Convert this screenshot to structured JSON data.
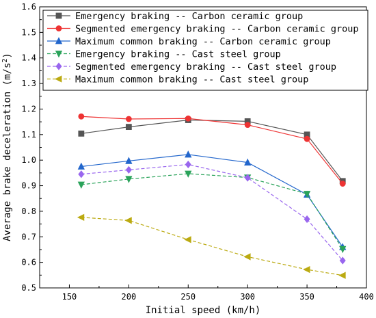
{
  "chart_data": {
    "type": "line",
    "xlabel": "Initial speed (km/h)",
    "ylabel_main": "Average brake deceleration (m/s",
    "ylabel_sup": "2",
    "ylabel_tail": ")",
    "xlim": [
      125,
      400
    ],
    "ylim": [
      0.5,
      1.6
    ],
    "x_ticks": [
      150,
      200,
      250,
      300,
      350,
      400
    ],
    "y_ticks": [
      0.5,
      0.6,
      0.7,
      0.8,
      0.9,
      1.0,
      1.1,
      1.2,
      1.3,
      1.4,
      1.5,
      1.6
    ],
    "x_tick_labels": [
      "150",
      "200",
      "250",
      "300",
      "350",
      "400"
    ],
    "y_tick_labels": [
      "0.5",
      "0.6",
      "0.7",
      "0.8",
      "0.9",
      "1.0",
      "1.1",
      "1.2",
      "1.3",
      "1.4",
      "1.5",
      "1.6"
    ],
    "grid": false,
    "legend_position": "top-left",
    "x": [
      160,
      200,
      250,
      300,
      350,
      380
    ],
    "series": [
      {
        "name": "Emergency braking -- Carbon ceramic group",
        "values": [
          1.104,
          1.13,
          1.157,
          1.152,
          1.1,
          0.918
        ],
        "color": "#555555",
        "marker": "square",
        "dash": false
      },
      {
        "name": "Segmented emergency braking -- Carbon ceramic group",
        "values": [
          1.171,
          1.161,
          1.163,
          1.138,
          1.083,
          0.908
        ],
        "color": "#ee3333",
        "marker": "circle",
        "dash": false
      },
      {
        "name": "Maximum common braking -- Carbon ceramic group",
        "values": [
          0.975,
          0.997,
          1.022,
          0.991,
          0.865,
          0.66
        ],
        "color": "#2266cc",
        "marker": "triangle-up",
        "dash": false
      },
      {
        "name": "Emergency braking -- Cast steel group",
        "values": [
          0.904,
          0.926,
          0.947,
          0.932,
          0.868,
          0.652
        ],
        "color": "#2aa35a",
        "marker": "triangle-down",
        "dash": true
      },
      {
        "name": "Segmented emergency braking -- Cast steel group",
        "values": [
          0.945,
          0.962,
          0.983,
          0.931,
          0.769,
          0.607
        ],
        "color": "#9966ee",
        "marker": "diamond",
        "dash": true
      },
      {
        "name": "Maximum common braking -- Cast steel group",
        "values": [
          0.776,
          0.764,
          0.689,
          0.622,
          0.572,
          0.549
        ],
        "color": "#bbaa11",
        "marker": "triangle-left",
        "dash": true
      }
    ]
  }
}
